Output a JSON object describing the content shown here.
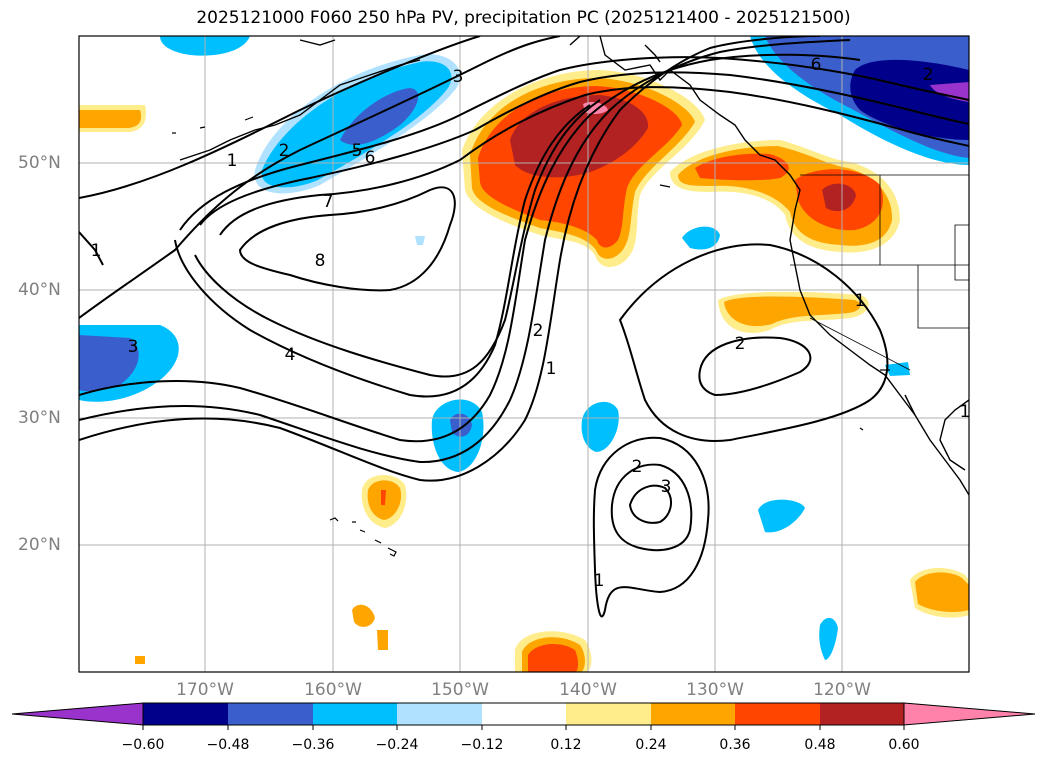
{
  "title": "2025121000 F060 250 hPa PV, precipitation PC (2025121400 - 2025121500)",
  "latitude_labels": [
    "50°N",
    "40°N",
    "30°N",
    "20°N"
  ],
  "longitude_labels": [
    "170°W",
    "160°W",
    "150°W",
    "140°W",
    "130°W",
    "120°W"
  ],
  "contour_labels": [
    "1",
    "2",
    "3",
    "4",
    "5",
    "6",
    "7",
    "8",
    "1",
    "2",
    "1",
    "2",
    "3",
    "1",
    "2",
    "3",
    "1",
    "6",
    "2",
    "1"
  ],
  "colorbar": {
    "ticks": [
      "−0.60",
      "−0.48",
      "−0.36",
      "−0.24",
      "−0.12",
      "0.12",
      "0.24",
      "0.36",
      "0.48",
      "0.60"
    ],
    "colors": [
      "#9a33cc",
      "#00008b",
      "#3a5fcd",
      "#00bfff",
      "#b0e2ff",
      "#ffffff",
      "#ffec8b",
      "#ffa500",
      "#ff4500",
      "#b22222",
      "#ff82ab"
    ]
  }
}
